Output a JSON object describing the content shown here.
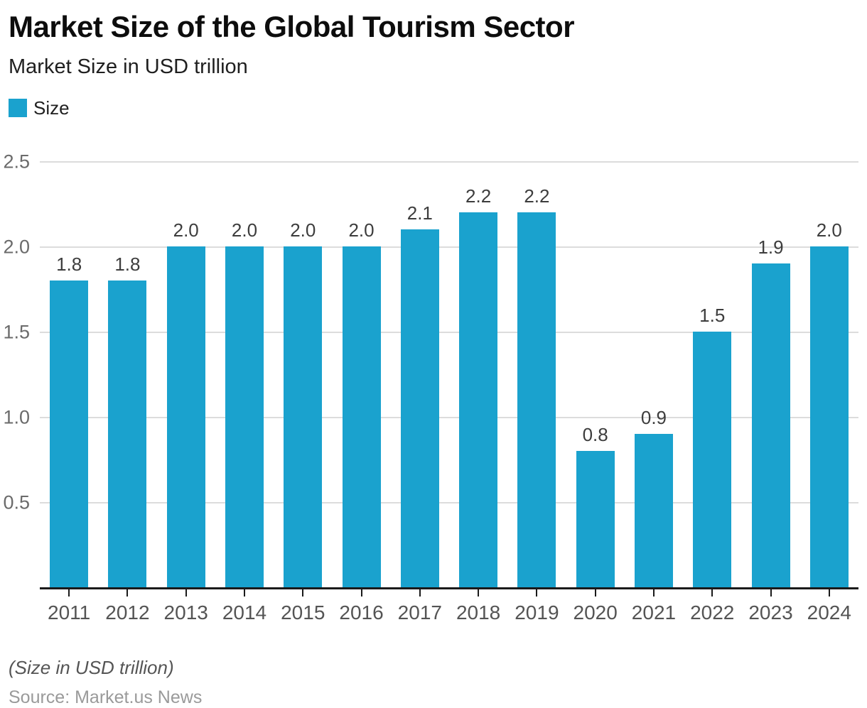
{
  "chart_data": {
    "type": "bar",
    "title": "Market Size of the Global Tourism Sector",
    "subtitle": "Market Size in USD trillion",
    "categories": [
      "2011",
      "2012",
      "2013",
      "2014",
      "2015",
      "2016",
      "2017",
      "2018",
      "2019",
      "2020",
      "2021",
      "2022",
      "2023",
      "2024"
    ],
    "series": [
      {
        "name": "Size",
        "values": [
          1.8,
          1.8,
          2.0,
          2.0,
          2.0,
          2.0,
          2.1,
          2.2,
          2.2,
          0.8,
          0.9,
          1.5,
          1.9,
          2.0
        ]
      }
    ],
    "data_labels": [
      "1.8",
      "1.8",
      "2.0",
      "2.0",
      "2.0",
      "2.0",
      "2.1",
      "2.2",
      "2.2",
      "0.8",
      "0.9",
      "1.5",
      "1.9",
      "2.0"
    ],
    "xlabel": "",
    "ylabel": "",
    "ylim": [
      0,
      2.5
    ],
    "yticks": [
      0.5,
      1.0,
      1.5,
      2.0,
      2.5
    ],
    "ytick_labels": [
      "0.5",
      "1.0",
      "1.5",
      "2.0",
      "2.5"
    ],
    "grid": true,
    "legend_position": "top-left",
    "footnote": "(Size in USD trillion)",
    "source": "Source: Market.us News"
  },
  "colors": {
    "bar": "#1AA2CE",
    "grid": "#DCDCDC",
    "axis": "#1A1A1A",
    "ytick_label": "#6B6B6B",
    "xtick_label": "#545454",
    "data_label": "#3D3D3D",
    "title": "#0D0D0D",
    "subtitle": "#1F1F1F",
    "note": "#555555",
    "source": "#9A9A9A"
  }
}
